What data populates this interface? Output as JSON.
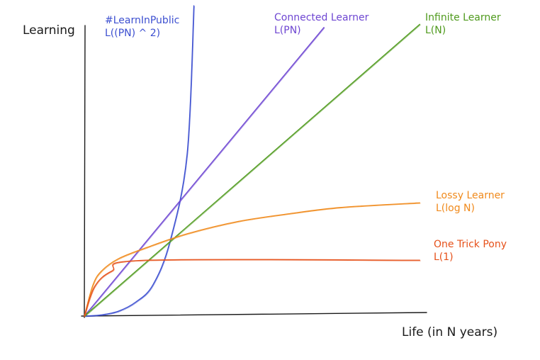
{
  "chart_data": {
    "type": "line",
    "title": "",
    "xlabel": "Life (in N years)",
    "ylabel": "Learning",
    "xlim": [
      0,
      10
    ],
    "ylim": [
      0,
      10
    ],
    "grid": false,
    "legend": "inline labels at line ends",
    "series": [
      {
        "name": "#LearnInPublic",
        "formula": "L((PN) ^ 2)",
        "color": "#3c4fd0",
        "x": [
          0,
          0.5,
          1,
          1.5,
          2,
          2.5,
          3,
          3.2
        ],
        "y": [
          0,
          0.04,
          0.16,
          0.45,
          1,
          2.4,
          5.2,
          10
        ]
      },
      {
        "name": "Connected Learner",
        "formula": "L(PN)",
        "color": "#6e46d2",
        "x": [
          0,
          7
        ],
        "y": [
          0,
          9.3
        ]
      },
      {
        "name": "Infinite Learner",
        "formula": "L(N)",
        "color": "#4f9a1d",
        "x": [
          0,
          9.8
        ],
        "y": [
          0,
          9.4
        ]
      },
      {
        "name": "Lossy Learner",
        "formula": "L(log N)",
        "color": "#f08a1c",
        "x": [
          0,
          0.25,
          0.5,
          1,
          1.8,
          3,
          4.5,
          6,
          7.5,
          9.8
        ],
        "y": [
          0,
          1,
          1.45,
          1.85,
          2.2,
          2.65,
          3.05,
          3.3,
          3.5,
          3.65
        ]
      },
      {
        "name": "One Trick Pony",
        "formula": "L(1)",
        "color": "#e6511a",
        "x": [
          0,
          0.3,
          0.8,
          1.8,
          9.8
        ],
        "y": [
          0,
          0.95,
          1.45,
          1.8,
          1.8
        ]
      }
    ]
  }
}
